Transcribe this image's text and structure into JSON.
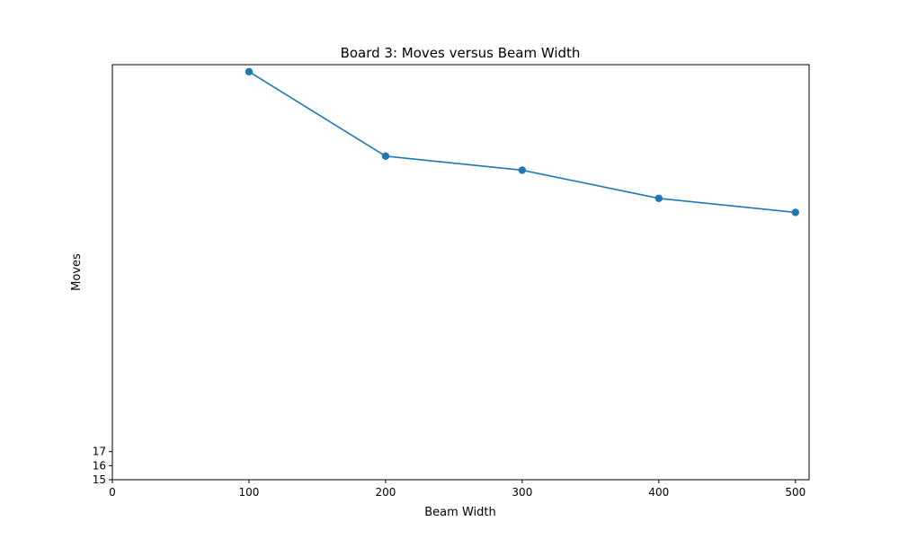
{
  "chart_data": {
    "type": "line",
    "title": "Board 3: Moves versus Beam Width",
    "xlabel": "Beam Width",
    "ylabel": "Moves",
    "x": [
      100,
      200,
      300,
      400,
      500
    ],
    "series": [
      {
        "values": [
          44,
          38,
          37,
          35,
          34
        ]
      }
    ],
    "xlim": [
      0,
      510
    ],
    "ylim": [
      15,
      44.5
    ],
    "xticks": [
      "0",
      "100",
      "200",
      "300",
      "400",
      "500"
    ],
    "yticks": [
      "15",
      "16",
      "17"
    ],
    "grid": false,
    "legend": "none",
    "color": "#1f77b4"
  }
}
